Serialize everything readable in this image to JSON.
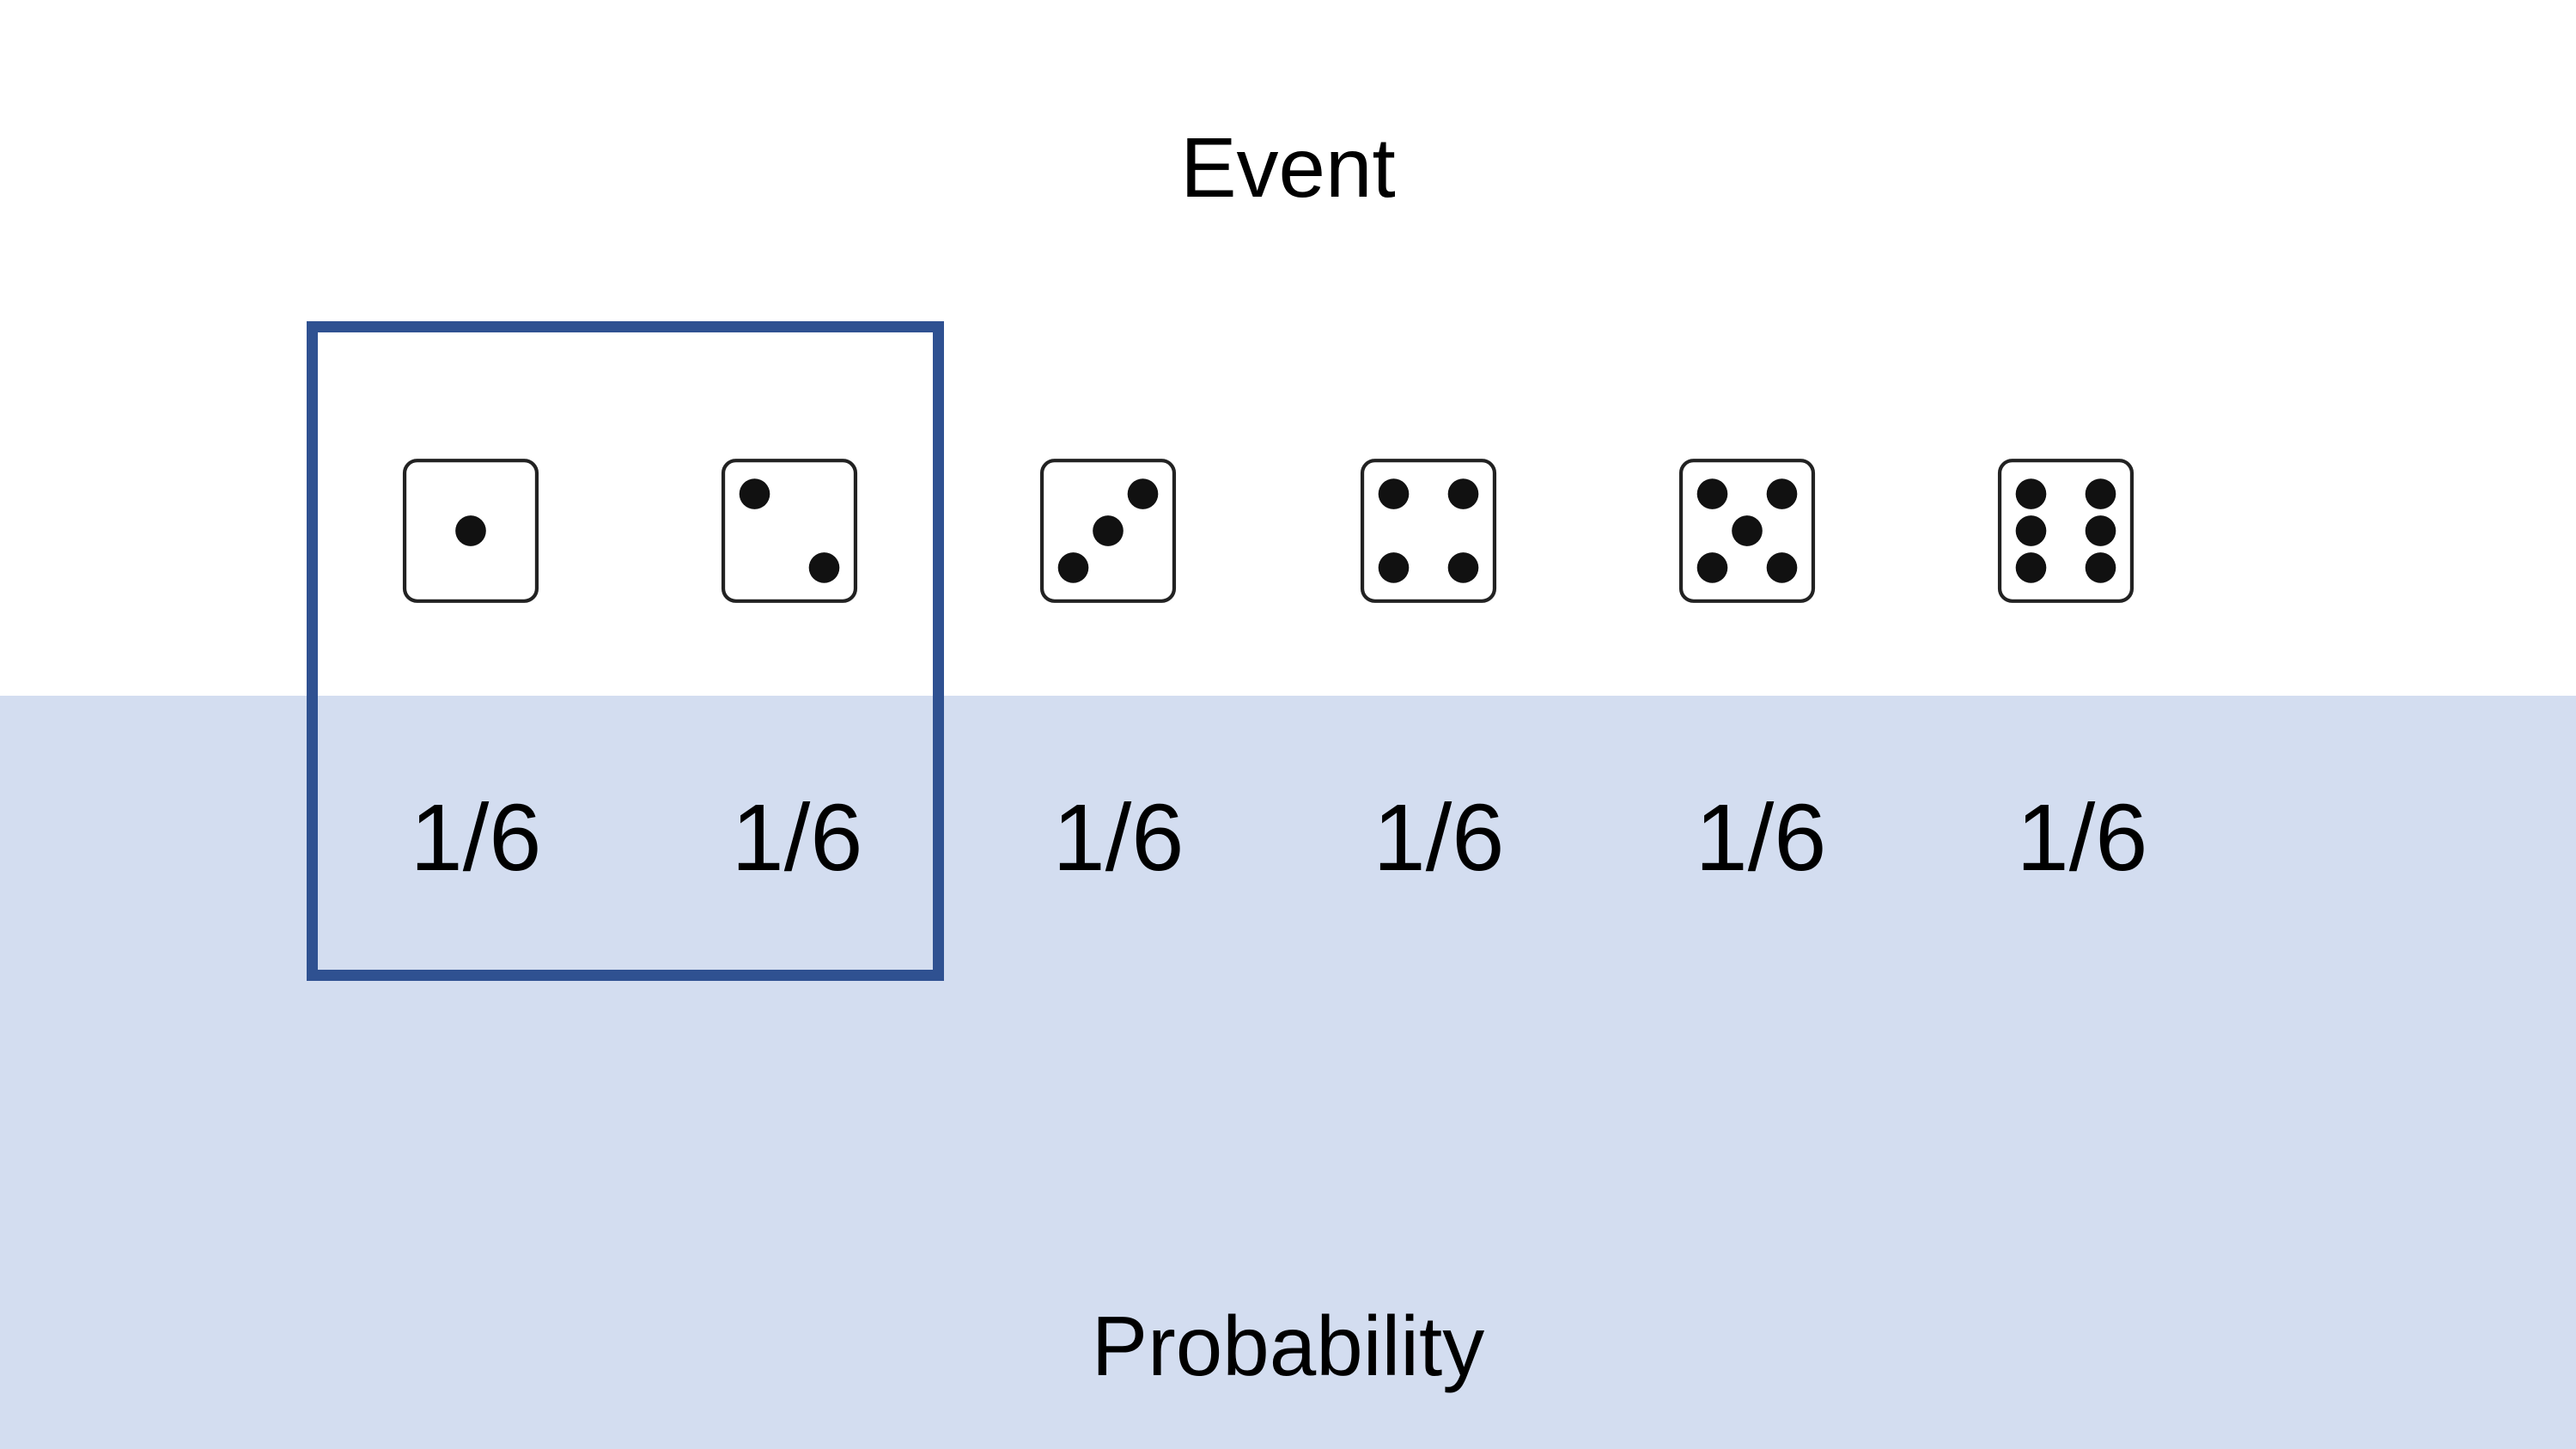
{
  "event_label": "Event",
  "probability_label": "Probability",
  "outcomes": [
    {
      "face": 1,
      "icon": "die-face-1-icon",
      "probability": "1/6"
    },
    {
      "face": 2,
      "icon": "die-face-2-icon",
      "probability": "1/6"
    },
    {
      "face": 3,
      "icon": "die-face-3-icon",
      "probability": "1/6"
    },
    {
      "face": 4,
      "icon": "die-face-4-icon",
      "probability": "1/6"
    },
    {
      "face": 5,
      "icon": "die-face-5-icon",
      "probability": "1/6"
    },
    {
      "face": 6,
      "icon": "die-face-6-icon",
      "probability": "1/6"
    }
  ],
  "highlighted_faces": [
    1,
    2
  ],
  "colors": {
    "probability_band": "#d3ddf0",
    "highlight_border": "#2f5191",
    "pip": "#111111",
    "die_outline": "#222222"
  }
}
